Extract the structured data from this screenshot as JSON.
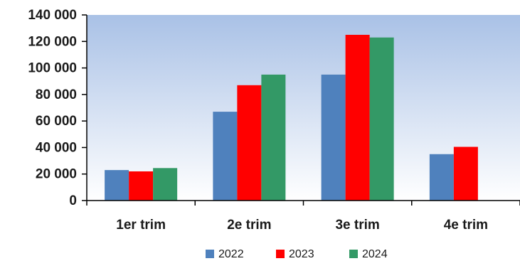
{
  "chart_data": {
    "type": "bar",
    "categories": [
      "1er trim",
      "2e trim",
      "3e trim",
      "4e trim"
    ],
    "series": [
      {
        "name": "2022",
        "color": "#4F81BD",
        "values": [
          23000,
          67000,
          95000,
          35000
        ]
      },
      {
        "name": "2023",
        "color": "#FF0000",
        "values": [
          22000,
          87000,
          125000,
          40500
        ]
      },
      {
        "name": "2024",
        "color": "#339966",
        "values": [
          24500,
          95000,
          123000,
          null
        ]
      }
    ],
    "yticks": [
      "0",
      "20 000",
      "40 000",
      "60 000",
      "80 000",
      "100 000",
      "120 000",
      "140 000"
    ],
    "ylim": [
      0,
      140000
    ],
    "legend_position": "bottom",
    "plot_background": "gradient light-blue top to white bottom"
  }
}
